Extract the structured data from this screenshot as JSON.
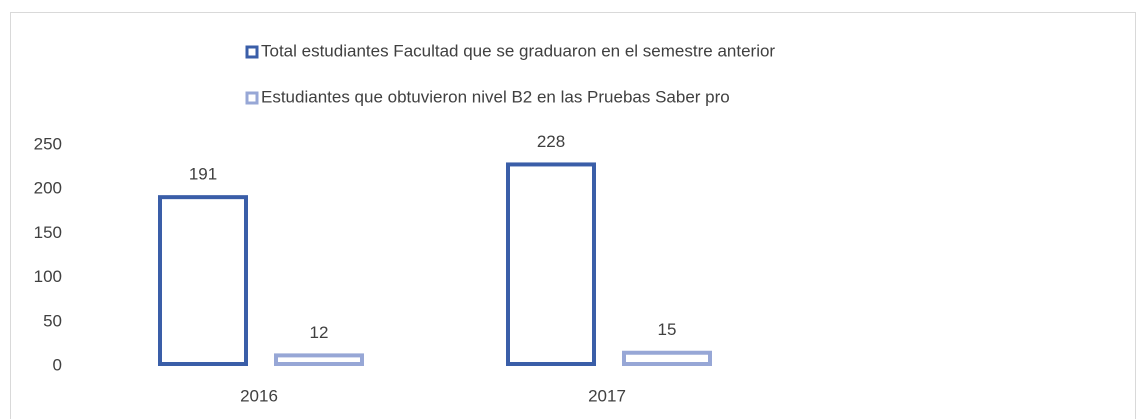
{
  "chart_data": {
    "type": "bar",
    "categories": [
      "2016",
      "2017"
    ],
    "series": [
      {
        "name": "Total estudiantes Facultad que se graduaron en el semestre anterior",
        "color": "#3a5ea8",
        "values": [
          191,
          228
        ]
      },
      {
        "name": "Estudiantes que obtuvieron nivel B2 en las Pruebas Saber pro",
        "color": "#97a7d6",
        "values": [
          12,
          15
        ]
      }
    ],
    "ylim": [
      0,
      250
    ],
    "yticks": [
      0,
      50,
      100,
      150,
      200,
      250
    ],
    "grid": false,
    "legend": "top"
  }
}
